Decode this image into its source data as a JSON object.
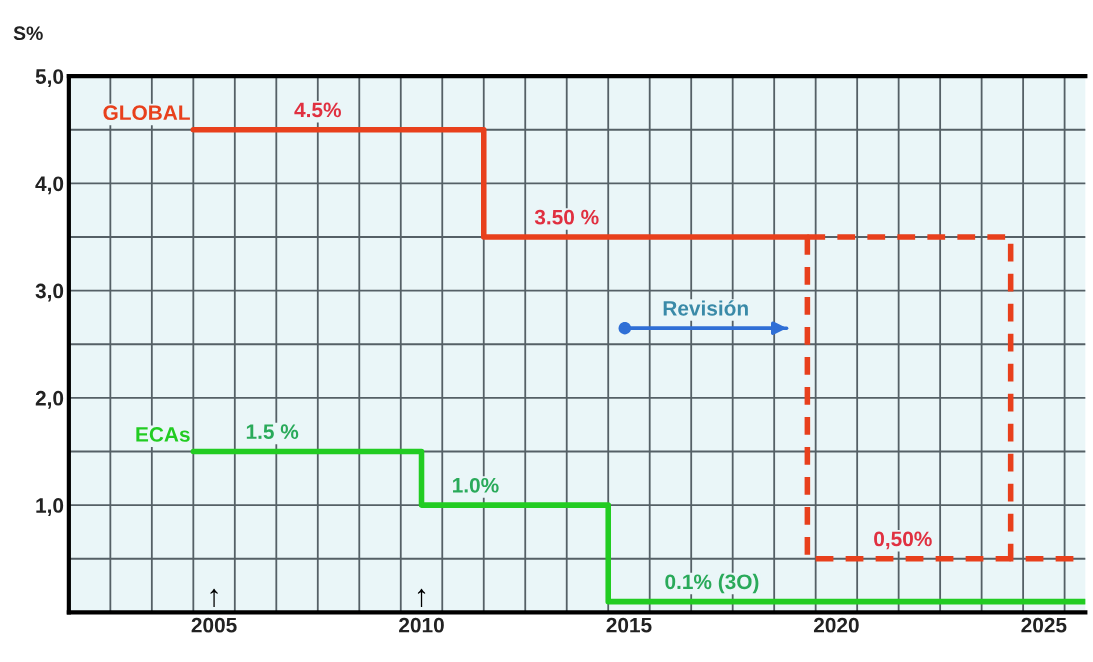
{
  "chart_data": {
    "type": "step",
    "ylabel": "S%",
    "xlim": [
      2001.5,
      2026.0
    ],
    "xticks": [
      2005,
      2010,
      2015,
      2020,
      2025,
      {
        "value": 2002.5,
        "label": null
      },
      {
        "value": 2003.5,
        "label": null
      },
      {
        "value": 2004.5,
        "label": null
      },
      {
        "value": 2005.5,
        "label": null
      },
      {
        "value": 2006.5,
        "label": null
      },
      {
        "value": 2007.5,
        "label": null
      },
      {
        "value": 2008.5,
        "label": null
      },
      {
        "value": 2009.5,
        "label": null
      },
      {
        "value": 2010.5,
        "label": null
      },
      {
        "value": 2011.5,
        "label": null
      },
      {
        "value": 2012.5,
        "label": null
      },
      {
        "value": 2013.5,
        "label": null
      },
      {
        "value": 2014.5,
        "label": null
      },
      {
        "value": 2015.5,
        "label": null
      },
      {
        "value": 2016.5,
        "label": null
      },
      {
        "value": 2017.5,
        "label": null
      },
      {
        "value": 2018.5,
        "label": null
      },
      {
        "value": 2019.5,
        "label": null
      },
      {
        "value": 2020.5,
        "label": null
      },
      {
        "value": 2021.5,
        "label": null
      },
      {
        "value": 2022.5,
        "label": null
      },
      {
        "value": 2023.5,
        "label": null
      },
      {
        "value": 2024.5,
        "label": null
      },
      {
        "value": 2025.5,
        "label": null
      }
    ],
    "ylim": [
      0,
      5
    ],
    "yticks": [
      {
        "value": 0.5,
        "label": null
      },
      {
        "value": 1,
        "label": "1,0"
      },
      {
        "value": 1.5,
        "label": null
      },
      {
        "value": 2,
        "label": "2,0"
      },
      {
        "value": 2.5,
        "label": null
      },
      {
        "value": 3,
        "label": "3,0"
      },
      {
        "value": 3.5,
        "label": null
      },
      {
        "value": 4,
        "label": "4,0"
      },
      {
        "value": 4.5,
        "label": null
      },
      {
        "value": 5,
        "label": "5,0"
      }
    ],
    "grid": true,
    "series": [
      {
        "name": "GLOBAL",
        "color": "#e8401c",
        "x": [
          2004.5,
          2011.5,
          2019.3
        ],
        "values": [
          4.5,
          3.5,
          3.5
        ]
      },
      {
        "color": "#e8401c",
        "line_style": "dashed",
        "x": [
          2019.3,
          2024.2,
          2026.0
        ],
        "values": [
          3.5,
          0.5,
          0.5
        ]
      },
      {
        "type": "line",
        "color": "#e8401c",
        "line_style": "dashed",
        "x": [
          2019.3,
          2019.3,
          2024.2
        ],
        "values": [
          3.5,
          0.5,
          0.5
        ]
      },
      {
        "name": "ECAs",
        "color": "#22cc22",
        "x": [
          2004.5,
          2010.0,
          2014.5,
          2026.0
        ],
        "values": [
          1.5,
          1.0,
          0.1,
          0.1
        ]
      },
      {
        "type": "line",
        "name": "Revisión",
        "color": "#2f6fd6",
        "marker": "circle",
        "x": [
          2014.9,
          2018.8
        ],
        "values": [
          2.65,
          2.65
        ]
      }
    ],
    "annotations": [
      {
        "text": "4.5%",
        "x": 2007.5,
        "y": 4.5
      },
      {
        "text": "3.50 %",
        "x": 2013.5,
        "y": 3.5
      },
      {
        "text": "0,50%",
        "x": 2021.6,
        "y": 0.5
      },
      {
        "text": "1.5 %",
        "x": 2006.4,
        "y": 1.5
      },
      {
        "text": "1.0%",
        "x": 2011.3,
        "y": 1.0
      },
      {
        "text": "0.1% (3O)",
        "x": 2017.0,
        "y": 0.1
      },
      "↑",
      "↑"
    ]
  }
}
